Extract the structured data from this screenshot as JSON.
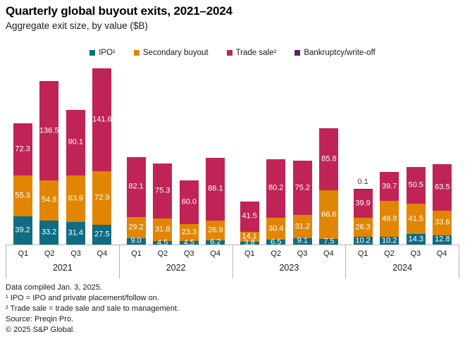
{
  "chart_data": {
    "type": "stacked-bar",
    "title": "Quarterly global buyout exits, 2021–2024",
    "subtitle": "Aggregate exit size, by value ($B)",
    "unit": "$B",
    "legend_position": "top",
    "grid": false,
    "value_labels": true,
    "series": [
      {
        "key": "ipo",
        "label": "IPO¹",
        "color": "#0f6c83"
      },
      {
        "key": "secondary_buyout",
        "label": "Secondary buyout",
        "color": "#e18604"
      },
      {
        "key": "trade_sale",
        "label": "Trade sale²",
        "color": "#c02355"
      },
      {
        "key": "bankruptcy_writeoff",
        "label": "Bankruptcy/write-off",
        "color": "#5c2360",
        "label_above": true
      }
    ],
    "groups": [
      {
        "year": "2021",
        "bars": [
          {
            "quarter": "Q1",
            "values": {
              "ipo": 39.2,
              "secondary_buyout": 55.3,
              "trade_sale": 72.3
            }
          },
          {
            "quarter": "Q2",
            "values": {
              "ipo": 33.2,
              "secondary_buyout": 54.8,
              "trade_sale": 136.5
            }
          },
          {
            "quarter": "Q3",
            "values": {
              "ipo": 31.4,
              "secondary_buyout": 63.9,
              "trade_sale": 90.1
            }
          },
          {
            "quarter": "Q4",
            "values": {
              "ipo": 27.5,
              "secondary_buyout": 72.9,
              "trade_sale": 141.6
            }
          }
        ]
      },
      {
        "year": "2022",
        "bars": [
          {
            "quarter": "Q1",
            "values": {
              "ipo": 9.0,
              "secondary_buyout": 29.2,
              "trade_sale": 82.1
            }
          },
          {
            "quarter": "Q2",
            "values": {
              "ipo": 4.5,
              "secondary_buyout": 31.8,
              "trade_sale": 75.3
            }
          },
          {
            "quarter": "Q3",
            "values": {
              "ipo": 4.5,
              "secondary_buyout": 23.3,
              "trade_sale": 60.0
            }
          },
          {
            "quarter": "Q4",
            "values": {
              "ipo": 6.2,
              "secondary_buyout": 26.9,
              "trade_sale": 86.1
            }
          }
        ]
      },
      {
        "year": "2023",
        "bars": [
          {
            "quarter": "Q1",
            "values": {
              "ipo": 3.8,
              "secondary_buyout": 14.1,
              "trade_sale": 41.5
            }
          },
          {
            "quarter": "Q2",
            "values": {
              "ipo": 6.5,
              "secondary_buyout": 30.4,
              "trade_sale": 80.2
            }
          },
          {
            "quarter": "Q3",
            "values": {
              "ipo": 9.1,
              "secondary_buyout": 31.2,
              "trade_sale": 75.2
            }
          },
          {
            "quarter": "Q4",
            "values": {
              "ipo": 7.5,
              "secondary_buyout": 66.6,
              "trade_sale": 85.8
            }
          }
        ]
      },
      {
        "year": "2024",
        "bars": [
          {
            "quarter": "Q1",
            "values": {
              "ipo": 10.2,
              "secondary_buyout": 26.3,
              "trade_sale": 39.9,
              "bankruptcy_writeoff": 0.1
            }
          },
          {
            "quarter": "Q2",
            "values": {
              "ipo": 10.2,
              "secondary_buyout": 49.8,
              "trade_sale": 39.7
            }
          },
          {
            "quarter": "Q3",
            "values": {
              "ipo": 14.3,
              "secondary_buyout": 41.5,
              "trade_sale": 50.5
            }
          },
          {
            "quarter": "Q4",
            "values": {
              "ipo": 12.8,
              "secondary_buyout": 33.6,
              "trade_sale": 63.5
            }
          }
        ]
      }
    ]
  },
  "footnotes": [
    "Data compiled Jan. 3, 2025.",
    "¹ IPO = IPO and private placement/follow on.",
    "² Trade sale = trade sale and sale to management.",
    "Source: Preqin Pro.",
    "© 2025 S&P Global."
  ]
}
